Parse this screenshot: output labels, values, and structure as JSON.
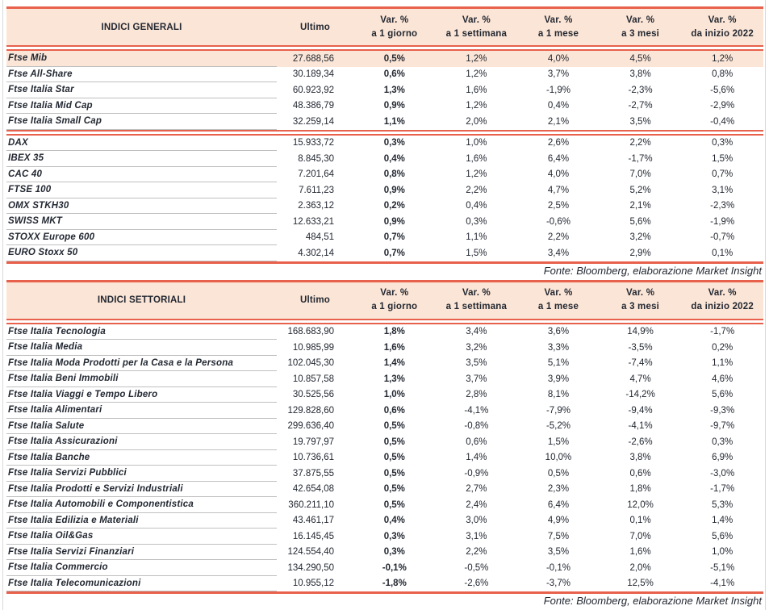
{
  "colors": {
    "accent_red": "#E8614C",
    "header_bg": "#FBE5D6",
    "highlight_bg": "#FBE5D6",
    "text": "#232832",
    "row_separator": "#BFBFBF"
  },
  "tables": [
    {
      "title": "INDICI GENERALI",
      "ultimo_label": "Ultimo",
      "var_headers": [
        {
          "line1": "Var. %",
          "line2": "a 1 giorno"
        },
        {
          "line1": "Var. %",
          "line2": "a 1 settimana"
        },
        {
          "line1": "Var. %",
          "line2": "a 1 mese"
        },
        {
          "line1": "Var. %",
          "line2": "a 3 mesi"
        },
        {
          "line1": "Var. %",
          "line2": "da inizio 2022"
        }
      ],
      "groups": [
        {
          "rows": [
            {
              "name": "Ftse Mib",
              "ultimo": "27.688,56",
              "vars": [
                "0,5%",
                "1,2%",
                "4,0%",
                "4,5%",
                "1,2%"
              ],
              "highlight": true
            },
            {
              "name": "Ftse All-Share",
              "ultimo": "30.189,34",
              "vars": [
                "0,6%",
                "1,2%",
                "3,7%",
                "3,8%",
                "0,8%"
              ]
            },
            {
              "name": "Ftse Italia Star",
              "ultimo": "60.923,92",
              "vars": [
                "1,3%",
                "1,6%",
                "-1,9%",
                "-2,3%",
                "-5,6%"
              ]
            },
            {
              "name": "Ftse Italia Mid Cap",
              "ultimo": "48.386,79",
              "vars": [
                "0,9%",
                "1,2%",
                "0,4%",
                "-2,7%",
                "-2,9%"
              ]
            },
            {
              "name": "Ftse Italia Small Cap",
              "ultimo": "32.259,14",
              "vars": [
                "1,1%",
                "2,0%",
                "2,1%",
                "3,5%",
                "-0,4%"
              ]
            }
          ]
        },
        {
          "rows": [
            {
              "name": "DAX",
              "ultimo": "15.933,72",
              "vars": [
                "0,3%",
                "1,0%",
                "2,6%",
                "2,2%",
                "0,3%"
              ]
            },
            {
              "name": "IBEX 35",
              "ultimo": "8.845,30",
              "vars": [
                "0,4%",
                "1,6%",
                "6,4%",
                "-1,7%",
                "1,5%"
              ]
            },
            {
              "name": "CAC 40",
              "ultimo": "7.201,64",
              "vars": [
                "0,8%",
                "1,2%",
                "4,0%",
                "7,0%",
                "0,7%"
              ]
            },
            {
              "name": "FTSE 100",
              "ultimo": "7.611,23",
              "vars": [
                "0,9%",
                "2,2%",
                "4,7%",
                "5,2%",
                "3,1%"
              ]
            },
            {
              "name": "OMX STKH30",
              "ultimo": "2.363,12",
              "vars": [
                "0,2%",
                "0,4%",
                "2,5%",
                "2,1%",
                "-2,3%"
              ]
            },
            {
              "name": "SWISS MKT",
              "ultimo": "12.633,21",
              "vars": [
                "0,9%",
                "0,3%",
                "-0,6%",
                "5,6%",
                "-1,9%"
              ]
            },
            {
              "name": "STOXX Europe 600",
              "ultimo": "484,51",
              "vars": [
                "0,7%",
                "1,1%",
                "2,2%",
                "3,2%",
                "-0,7%"
              ]
            },
            {
              "name": "EURO Stoxx 50",
              "ultimo": "4.302,14",
              "vars": [
                "0,7%",
                "1,5%",
                "3,4%",
                "2,9%",
                "0,1%"
              ]
            }
          ]
        }
      ],
      "fonte": "Fonte: Bloomberg, elaborazione Market Insight"
    },
    {
      "title": "INDICI SETTORIALI",
      "ultimo_label": "Ultimo",
      "var_headers": [
        {
          "line1": "Var. %",
          "line2": "a 1 giorno"
        },
        {
          "line1": "Var. %",
          "line2": "a 1 settimana"
        },
        {
          "line1": "Var. %",
          "line2": "a 1 mese"
        },
        {
          "line1": "Var. %",
          "line2": "a 3 mesi"
        },
        {
          "line1": "Var. %",
          "line2": "da inizio 2022"
        }
      ],
      "groups": [
        {
          "rows": [
            {
              "name": "Ftse Italia Tecnologia",
              "ultimo": "168.683,90",
              "vars": [
                "1,8%",
                "3,4%",
                "3,6%",
                "14,9%",
                "-1,7%"
              ]
            },
            {
              "name": "Ftse Italia Media",
              "ultimo": "10.985,99",
              "vars": [
                "1,6%",
                "3,2%",
                "3,3%",
                "-3,5%",
                "0,2%"
              ]
            },
            {
              "name": "Ftse Italia Moda Prodotti per la Casa e la Persona",
              "ultimo": "102.045,30",
              "vars": [
                "1,4%",
                "3,5%",
                "5,1%",
                "-7,4%",
                "1,1%"
              ]
            },
            {
              "name": "Ftse Italia Beni Immobili",
              "ultimo": "10.857,58",
              "vars": [
                "1,3%",
                "3,7%",
                "3,9%",
                "4,7%",
                "4,6%"
              ]
            },
            {
              "name": "Ftse Italia Viaggi e Tempo Libero",
              "ultimo": "30.525,56",
              "vars": [
                "1,0%",
                "2,8%",
                "8,1%",
                "-14,2%",
                "5,6%"
              ]
            },
            {
              "name": "Ftse Italia Alimentari",
              "ultimo": "129.828,60",
              "vars": [
                "0,6%",
                "-4,1%",
                "-7,9%",
                "-9,4%",
                "-9,3%"
              ]
            },
            {
              "name": "Ftse Italia Salute",
              "ultimo": "299.636,40",
              "vars": [
                "0,5%",
                "-0,8%",
                "-5,2%",
                "-4,1%",
                "-9,7%"
              ]
            },
            {
              "name": "Ftse Italia Assicurazioni",
              "ultimo": "19.797,97",
              "vars": [
                "0,5%",
                "0,6%",
                "1,5%",
                "-2,6%",
                "0,3%"
              ]
            },
            {
              "name": "Ftse Italia Banche",
              "ultimo": "10.736,61",
              "vars": [
                "0,5%",
                "1,4%",
                "10,0%",
                "3,8%",
                "6,9%"
              ]
            },
            {
              "name": "Ftse Italia Servizi Pubblici",
              "ultimo": "37.875,55",
              "vars": [
                "0,5%",
                "-0,9%",
                "0,5%",
                "0,6%",
                "-3,0%"
              ]
            },
            {
              "name": "Ftse Italia Prodotti e Servizi Industriali",
              "ultimo": "42.654,08",
              "vars": [
                "0,5%",
                "2,7%",
                "2,3%",
                "1,8%",
                "-1,7%"
              ]
            },
            {
              "name": "Ftse Italia Automobili e Componentistica",
              "ultimo": "360.211,10",
              "vars": [
                "0,5%",
                "2,4%",
                "6,4%",
                "12,0%",
                "5,3%"
              ]
            },
            {
              "name": "Ftse Italia Edilizia e Materiali",
              "ultimo": "43.461,17",
              "vars": [
                "0,4%",
                "3,0%",
                "4,9%",
                "0,1%",
                "1,4%"
              ]
            },
            {
              "name": "Ftse Italia Oil&Gas",
              "ultimo": "16.145,45",
              "vars": [
                "0,3%",
                "3,1%",
                "7,5%",
                "7,0%",
                "5,6%"
              ]
            },
            {
              "name": "Ftse Italia Servizi Finanziari",
              "ultimo": "124.554,40",
              "vars": [
                "0,3%",
                "2,2%",
                "3,5%",
                "1,6%",
                "1,0%"
              ]
            },
            {
              "name": "Ftse Italia Commercio",
              "ultimo": "134.290,50",
              "vars": [
                "-0,1%",
                "-0,5%",
                "-0,1%",
                "2,0%",
                "-5,1%"
              ]
            },
            {
              "name": "Ftse Italia Telecomunicazioni",
              "ultimo": "10.955,12",
              "vars": [
                "-1,8%",
                "-2,6%",
                "-3,7%",
                "12,5%",
                "-4,1%"
              ]
            }
          ]
        }
      ],
      "fonte": "Fonte: Bloomberg, elaborazione Market Insight"
    }
  ]
}
